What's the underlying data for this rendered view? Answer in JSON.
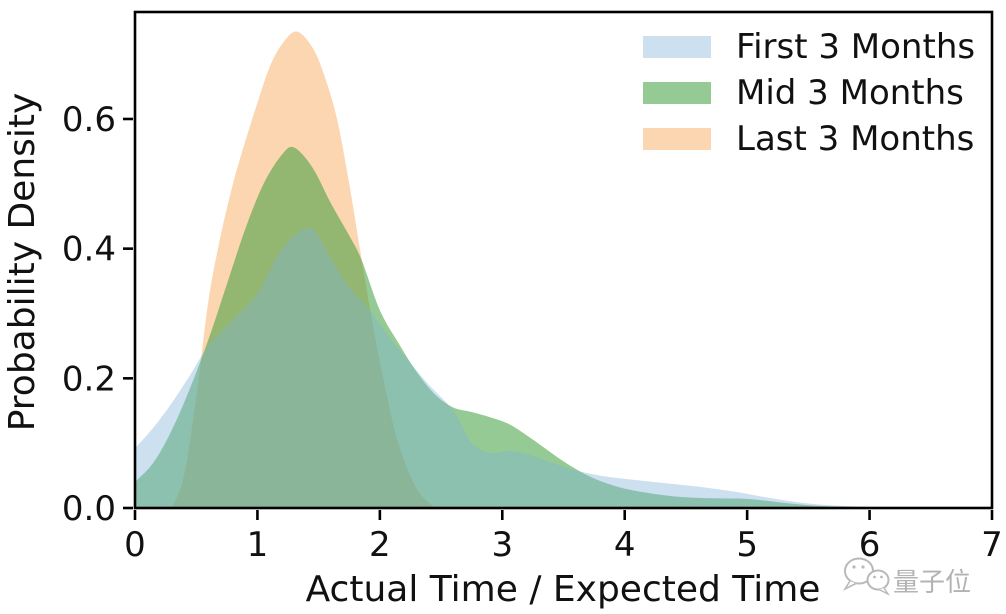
{
  "watermark": {
    "text": "量子位",
    "icon": "wechat-bubbles-icon",
    "color": "#b7b7b7"
  },
  "chart_data": {
    "type": "area",
    "subtype": "kde-density",
    "title": "",
    "xlabel": "Actual Time / Expected Time",
    "ylabel": "Probability Density",
    "xlim": [
      0,
      7
    ],
    "ylim": [
      0,
      0.765
    ],
    "grid": false,
    "legend_position": "upper-right",
    "legend": [
      "First 3 Months",
      "Mid 3 Months",
      "Last 3 Months"
    ],
    "xticks": [
      {
        "v": 0,
        "label": "0"
      },
      {
        "v": 1,
        "label": "1"
      },
      {
        "v": 2,
        "label": "2"
      },
      {
        "v": 3,
        "label": "3"
      },
      {
        "v": 4,
        "label": "4"
      },
      {
        "v": 5,
        "label": "5"
      },
      {
        "v": 6,
        "label": "6"
      },
      {
        "v": 7,
        "label": "7"
      }
    ],
    "yticks": [
      {
        "v": 0.0,
        "label": "0.0"
      },
      {
        "v": 0.2,
        "label": "0.2"
      },
      {
        "v": 0.4,
        "label": "0.4"
      },
      {
        "v": 0.6,
        "label": "0.6"
      }
    ],
    "series": [
      {
        "name": "Last 3 Months",
        "fill": "#F59E42",
        "opacity": 0.42,
        "draw_order": 0,
        "peak": {
          "x": 1.32,
          "y": 0.735
        },
        "points": [
          [
            0.3,
            0.0
          ],
          [
            0.4,
            0.05
          ],
          [
            0.5,
            0.17
          ],
          [
            0.6,
            0.32
          ],
          [
            0.7,
            0.42
          ],
          [
            0.8,
            0.5
          ],
          [
            0.9,
            0.565
          ],
          [
            1.0,
            0.625
          ],
          [
            1.1,
            0.68
          ],
          [
            1.2,
            0.715
          ],
          [
            1.32,
            0.735
          ],
          [
            1.45,
            0.71
          ],
          [
            1.55,
            0.665
          ],
          [
            1.65,
            0.6
          ],
          [
            1.75,
            0.5
          ],
          [
            1.85,
            0.385
          ],
          [
            1.95,
            0.275
          ],
          [
            2.05,
            0.18
          ],
          [
            2.15,
            0.1
          ],
          [
            2.3,
            0.03
          ],
          [
            2.45,
            0.0
          ]
        ]
      },
      {
        "name": "Mid 3 Months",
        "fill": "#3E9E3E",
        "opacity": 0.55,
        "draw_order": 1,
        "peak": {
          "x": 1.3,
          "y": 0.556
        },
        "points": [
          [
            0.0,
            0.04
          ],
          [
            0.15,
            0.07
          ],
          [
            0.3,
            0.12
          ],
          [
            0.45,
            0.185
          ],
          [
            0.6,
            0.26
          ],
          [
            0.75,
            0.345
          ],
          [
            0.9,
            0.43
          ],
          [
            1.05,
            0.5
          ],
          [
            1.2,
            0.545
          ],
          [
            1.3,
            0.556
          ],
          [
            1.45,
            0.525
          ],
          [
            1.6,
            0.47
          ],
          [
            1.75,
            0.42
          ],
          [
            1.85,
            0.383
          ],
          [
            2.0,
            0.305
          ],
          [
            2.15,
            0.255
          ],
          [
            2.3,
            0.21
          ],
          [
            2.45,
            0.175
          ],
          [
            2.6,
            0.155
          ],
          [
            2.75,
            0.148
          ],
          [
            2.9,
            0.14
          ],
          [
            3.05,
            0.13
          ],
          [
            3.2,
            0.112
          ],
          [
            3.35,
            0.092
          ],
          [
            3.5,
            0.072
          ],
          [
            3.7,
            0.05
          ],
          [
            3.9,
            0.035
          ],
          [
            4.1,
            0.026
          ],
          [
            4.4,
            0.018
          ],
          [
            4.7,
            0.015
          ],
          [
            5.0,
            0.014
          ],
          [
            5.3,
            0.008
          ],
          [
            5.6,
            0.003
          ],
          [
            5.9,
            0.001
          ],
          [
            6.15,
            0.0
          ]
        ]
      },
      {
        "name": "First 3 Months",
        "fill": "#7FB2D8",
        "opacity": 0.4,
        "draw_order": 2,
        "peak": {
          "x": 1.4,
          "y": 0.43
        },
        "points": [
          [
            0.0,
            0.092
          ],
          [
            0.15,
            0.124
          ],
          [
            0.3,
            0.162
          ],
          [
            0.45,
            0.205
          ],
          [
            0.6,
            0.25
          ],
          [
            0.8,
            0.29
          ],
          [
            1.0,
            0.33
          ],
          [
            1.15,
            0.385
          ],
          [
            1.3,
            0.42
          ],
          [
            1.45,
            0.43
          ],
          [
            1.6,
            0.385
          ],
          [
            1.75,
            0.34
          ],
          [
            1.9,
            0.31
          ],
          [
            2.05,
            0.27
          ],
          [
            2.2,
            0.235
          ],
          [
            2.4,
            0.19
          ],
          [
            2.6,
            0.15
          ],
          [
            2.75,
            0.1
          ],
          [
            2.9,
            0.085
          ],
          [
            3.05,
            0.088
          ],
          [
            3.2,
            0.083
          ],
          [
            3.4,
            0.07
          ],
          [
            3.6,
            0.058
          ],
          [
            3.8,
            0.05
          ],
          [
            4.0,
            0.045
          ],
          [
            4.3,
            0.039
          ],
          [
            4.6,
            0.033
          ],
          [
            4.9,
            0.025
          ],
          [
            5.2,
            0.015
          ],
          [
            5.5,
            0.007
          ],
          [
            5.8,
            0.003
          ],
          [
            6.1,
            0.001
          ],
          [
            6.4,
            0.0
          ]
        ]
      }
    ]
  }
}
